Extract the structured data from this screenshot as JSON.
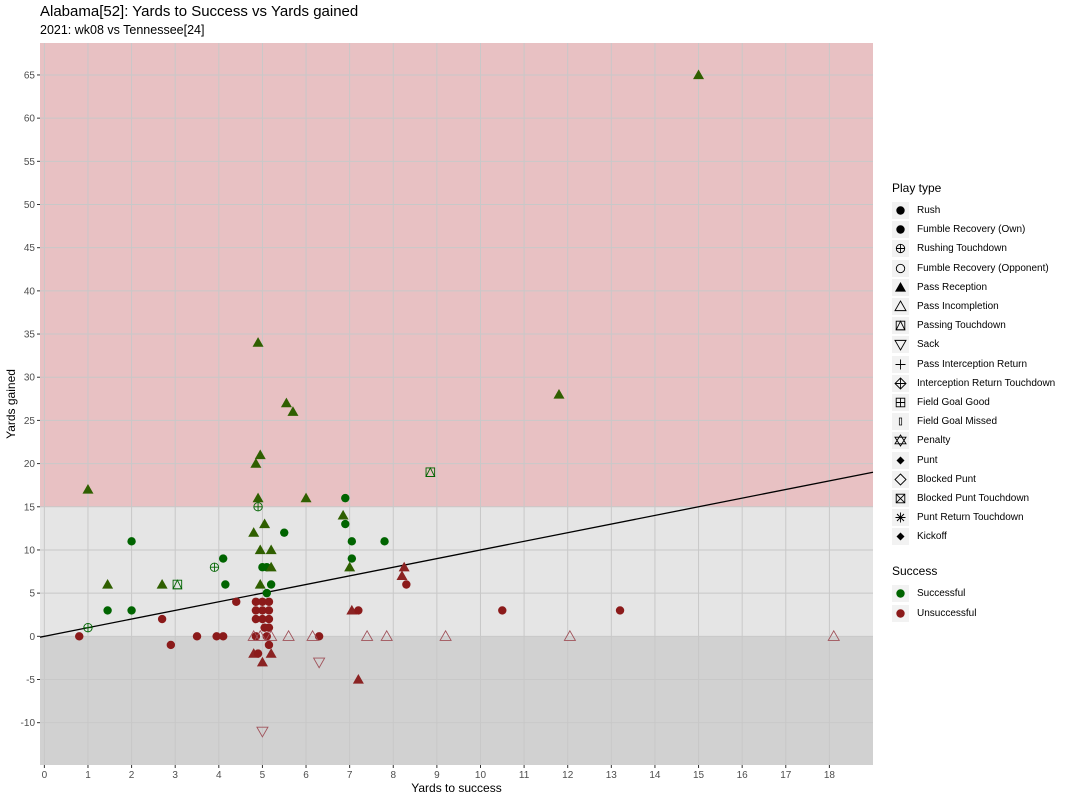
{
  "title": "Alabama[52]: Yards to Success vs Yards gained",
  "subtitle": "2021: wk08 vs Tennessee[24]",
  "colors": {
    "successful": "#006400",
    "unsuccessful": "#8b1a1a",
    "band_top": "#e8c1c3",
    "band_mid": "#e5e5e5",
    "band_low": "#d1d1d1",
    "grid": "#c8c8c8",
    "line": "#000000"
  },
  "legend": {
    "play_type_title": "Play type",
    "play_types": [
      {
        "label": "Rush",
        "icon": "filled-circle-icon"
      },
      {
        "label": "Fumble Recovery (Own)",
        "icon": "filled-circle-icon"
      },
      {
        "label": "Rushing Touchdown",
        "icon": "circle-plus-icon"
      },
      {
        "label": "Fumble Recovery (Opponent)",
        "icon": "open-circle-icon"
      },
      {
        "label": "Pass Reception",
        "icon": "filled-triangle-icon"
      },
      {
        "label": "Pass Incompletion",
        "icon": "open-triangle-icon"
      },
      {
        "label": "Passing Touchdown",
        "icon": "square-triangle-icon"
      },
      {
        "label": "Sack",
        "icon": "down-triangle-icon"
      },
      {
        "label": "Pass Interception Return",
        "icon": "plus-icon"
      },
      {
        "label": "Interception Return Touchdown",
        "icon": "diamond-plus-icon"
      },
      {
        "label": "Field Goal Good",
        "icon": "square-plus-icon"
      },
      {
        "label": "Field Goal Missed",
        "icon": "small-bar-icon"
      },
      {
        "label": "Penalty",
        "icon": "star-of-david-icon"
      },
      {
        "label": "Punt",
        "icon": "small-filled-diamond-icon"
      },
      {
        "label": "Blocked Punt",
        "icon": "open-diamond-icon"
      },
      {
        "label": "Blocked Punt Touchdown",
        "icon": "square-cross-icon"
      },
      {
        "label": "Punt Return Touchdown",
        "icon": "asterisk-icon"
      },
      {
        "label": "Kickoff",
        "icon": "small-filled-diamond-icon"
      }
    ],
    "success_title": "Success",
    "success": [
      {
        "label": "Successful",
        "color": "#006400"
      },
      {
        "label": "Unsuccessful",
        "color": "#8b1a1a"
      }
    ]
  },
  "chart_data": {
    "type": "scatter",
    "xlabel": "Yards to success",
    "ylabel": "Yards gained",
    "xlim": [
      -0.1,
      19.0
    ],
    "ylim": [
      -14.9,
      68.7
    ],
    "x_ticks": [
      0,
      1,
      2,
      3,
      4,
      5,
      6,
      7,
      8,
      9,
      10,
      11,
      12,
      13,
      14,
      15,
      16,
      17,
      18
    ],
    "y_ticks": [
      -10,
      -5,
      0,
      5,
      10,
      15,
      20,
      25,
      30,
      35,
      40,
      45,
      50,
      55,
      60,
      65
    ],
    "grid": true,
    "bands": [
      {
        "from": 15,
        "to": 68.7,
        "color": "#e8c1c3"
      },
      {
        "from": 0,
        "to": 15,
        "color": "#e5e5e5"
      },
      {
        "from": -14.9,
        "to": 0,
        "color": "#d1d1d1"
      }
    ],
    "reference_line": {
      "intercept": 0,
      "slope": 1.0
    },
    "legend_position": "right",
    "points": [
      {
        "x": 15.0,
        "y": 65,
        "shape": "Pass Reception",
        "success": "Successful"
      },
      {
        "x": 11.8,
        "y": 28,
        "shape": "Pass Reception",
        "success": "Successful"
      },
      {
        "x": 4.9,
        "y": 34,
        "shape": "Pass Reception",
        "success": "Successful"
      },
      {
        "x": 5.55,
        "y": 27,
        "shape": "Pass Reception",
        "success": "Successful"
      },
      {
        "x": 5.7,
        "y": 26,
        "shape": "Pass Reception",
        "success": "Successful"
      },
      {
        "x": 4.85,
        "y": 20,
        "shape": "Pass Reception",
        "success": "Successful"
      },
      {
        "x": 4.95,
        "y": 21,
        "shape": "Pass Reception",
        "success": "Successful"
      },
      {
        "x": 1.0,
        "y": 17,
        "shape": "Pass Reception",
        "success": "Successful"
      },
      {
        "x": 4.9,
        "y": 16,
        "shape": "Pass Reception",
        "success": "Successful"
      },
      {
        "x": 6.0,
        "y": 16,
        "shape": "Pass Reception",
        "success": "Successful"
      },
      {
        "x": 6.9,
        "y": 16,
        "shape": "Rush",
        "success": "Successful"
      },
      {
        "x": 8.85,
        "y": 19,
        "shape": "Passing Touchdown",
        "success": "Successful"
      },
      {
        "x": 4.9,
        "y": 15,
        "shape": "Rushing Touchdown",
        "success": "Successful"
      },
      {
        "x": 6.85,
        "y": 14,
        "shape": "Pass Reception",
        "success": "Successful"
      },
      {
        "x": 6.9,
        "y": 13,
        "shape": "Rush",
        "success": "Successful"
      },
      {
        "x": 5.05,
        "y": 13,
        "shape": "Pass Reception",
        "success": "Successful"
      },
      {
        "x": 4.8,
        "y": 12,
        "shape": "Pass Reception",
        "success": "Successful"
      },
      {
        "x": 5.5,
        "y": 12,
        "shape": "Rush",
        "success": "Successful"
      },
      {
        "x": 2.0,
        "y": 11,
        "shape": "Rush",
        "success": "Successful"
      },
      {
        "x": 7.05,
        "y": 11,
        "shape": "Rush",
        "success": "Successful"
      },
      {
        "x": 7.8,
        "y": 11,
        "shape": "Rush",
        "success": "Successful"
      },
      {
        "x": 4.95,
        "y": 10,
        "shape": "Pass Reception",
        "success": "Successful"
      },
      {
        "x": 5.2,
        "y": 10,
        "shape": "Pass Reception",
        "success": "Successful"
      },
      {
        "x": 4.1,
        "y": 9,
        "shape": "Rush",
        "success": "Successful"
      },
      {
        "x": 7.05,
        "y": 9,
        "shape": "Rush",
        "success": "Successful"
      },
      {
        "x": 3.9,
        "y": 8,
        "shape": "Rushing Touchdown",
        "success": "Successful"
      },
      {
        "x": 5.0,
        "y": 8,
        "shape": "Rush",
        "success": "Successful"
      },
      {
        "x": 5.1,
        "y": 8,
        "shape": "Rush",
        "success": "Successful"
      },
      {
        "x": 5.2,
        "y": 8,
        "shape": "Pass Reception",
        "success": "Successful"
      },
      {
        "x": 7.0,
        "y": 8,
        "shape": "Pass Reception",
        "success": "Successful"
      },
      {
        "x": 1.45,
        "y": 6,
        "shape": "Pass Reception",
        "success": "Successful"
      },
      {
        "x": 2.7,
        "y": 6,
        "shape": "Pass Reception",
        "success": "Successful"
      },
      {
        "x": 3.05,
        "y": 6,
        "shape": "Passing Touchdown",
        "success": "Successful"
      },
      {
        "x": 4.15,
        "y": 6,
        "shape": "Rush",
        "success": "Successful"
      },
      {
        "x": 4.95,
        "y": 6,
        "shape": "Pass Reception",
        "success": "Successful"
      },
      {
        "x": 5.2,
        "y": 6,
        "shape": "Rush",
        "success": "Successful"
      },
      {
        "x": 5.1,
        "y": 5,
        "shape": "Rush",
        "success": "Successful"
      },
      {
        "x": 1.45,
        "y": 3,
        "shape": "Rush",
        "success": "Successful"
      },
      {
        "x": 2.0,
        "y": 3,
        "shape": "Rush",
        "success": "Successful"
      },
      {
        "x": 1.0,
        "y": 1,
        "shape": "Rushing Touchdown",
        "success": "Successful"
      },
      {
        "x": 8.25,
        "y": 8,
        "shape": "Pass Reception",
        "success": "Unsuccessful"
      },
      {
        "x": 8.2,
        "y": 7,
        "shape": "Pass Reception",
        "success": "Unsuccessful"
      },
      {
        "x": 8.3,
        "y": 6,
        "shape": "Rush",
        "success": "Unsuccessful"
      },
      {
        "x": 4.4,
        "y": 4,
        "shape": "Rush",
        "success": "Unsuccessful"
      },
      {
        "x": 4.85,
        "y": 4,
        "shape": "Rush",
        "success": "Unsuccessful"
      },
      {
        "x": 5.0,
        "y": 4,
        "shape": "Rush",
        "success": "Unsuccessful"
      },
      {
        "x": 5.15,
        "y": 4,
        "shape": "Rush",
        "success": "Unsuccessful"
      },
      {
        "x": 4.85,
        "y": 3,
        "shape": "Rush",
        "success": "Unsuccessful"
      },
      {
        "x": 5.0,
        "y": 3,
        "shape": "Rush",
        "success": "Unsuccessful"
      },
      {
        "x": 5.15,
        "y": 3,
        "shape": "Rush",
        "success": "Unsuccessful"
      },
      {
        "x": 7.05,
        "y": 3,
        "shape": "Pass Reception",
        "success": "Unsuccessful"
      },
      {
        "x": 7.2,
        "y": 3,
        "shape": "Rush",
        "success": "Unsuccessful"
      },
      {
        "x": 10.5,
        "y": 3,
        "shape": "Rush",
        "success": "Unsuccessful"
      },
      {
        "x": 13.2,
        "y": 3,
        "shape": "Rush",
        "success": "Unsuccessful"
      },
      {
        "x": 2.7,
        "y": 2,
        "shape": "Rush",
        "success": "Unsuccessful"
      },
      {
        "x": 4.85,
        "y": 2,
        "shape": "Rush",
        "success": "Unsuccessful"
      },
      {
        "x": 5.0,
        "y": 2,
        "shape": "Rush",
        "success": "Unsuccessful"
      },
      {
        "x": 5.15,
        "y": 2,
        "shape": "Rush",
        "success": "Unsuccessful"
      },
      {
        "x": 5.05,
        "y": 1,
        "shape": "Rush",
        "success": "Unsuccessful"
      },
      {
        "x": 5.15,
        "y": 1,
        "shape": "Rush",
        "success": "Unsuccessful"
      },
      {
        "x": 0.8,
        "y": 0,
        "shape": "Rush",
        "success": "Unsuccessful"
      },
      {
        "x": 3.5,
        "y": 0,
        "shape": "Rush",
        "success": "Unsuccessful"
      },
      {
        "x": 3.95,
        "y": 0,
        "shape": "Rush",
        "success": "Unsuccessful"
      },
      {
        "x": 4.1,
        "y": 0,
        "shape": "Rush",
        "success": "Unsuccessful"
      },
      {
        "x": 4.85,
        "y": 0,
        "shape": "Rush",
        "success": "Unsuccessful"
      },
      {
        "x": 5.1,
        "y": 0,
        "shape": "Rush",
        "success": "Unsuccessful"
      },
      {
        "x": 6.3,
        "y": 0,
        "shape": "Rush",
        "success": "Unsuccessful"
      },
      {
        "x": 4.8,
        "y": 0,
        "shape": "Pass Incompletion",
        "success": "Unsuccessful"
      },
      {
        "x": 4.95,
        "y": 0,
        "shape": "Pass Incompletion",
        "success": "Unsuccessful"
      },
      {
        "x": 5.2,
        "y": 0,
        "shape": "Pass Incompletion",
        "success": "Unsuccessful"
      },
      {
        "x": 5.6,
        "y": 0,
        "shape": "Pass Incompletion",
        "success": "Unsuccessful"
      },
      {
        "x": 6.15,
        "y": 0,
        "shape": "Pass Incompletion",
        "success": "Unsuccessful"
      },
      {
        "x": 7.4,
        "y": 0,
        "shape": "Pass Incompletion",
        "success": "Unsuccessful"
      },
      {
        "x": 7.85,
        "y": 0,
        "shape": "Pass Incompletion",
        "success": "Unsuccessful"
      },
      {
        "x": 9.2,
        "y": 0,
        "shape": "Pass Incompletion",
        "success": "Unsuccessful"
      },
      {
        "x": 12.05,
        "y": 0,
        "shape": "Pass Incompletion",
        "success": "Unsuccessful"
      },
      {
        "x": 18.1,
        "y": 0,
        "shape": "Pass Incompletion",
        "success": "Unsuccessful"
      },
      {
        "x": 2.9,
        "y": -1,
        "shape": "Rush",
        "success": "Unsuccessful"
      },
      {
        "x": 5.15,
        "y": -1,
        "shape": "Rush",
        "success": "Unsuccessful"
      },
      {
        "x": 4.8,
        "y": -2,
        "shape": "Pass Reception",
        "success": "Unsuccessful"
      },
      {
        "x": 4.9,
        "y": -2,
        "shape": "Rush",
        "success": "Unsuccessful"
      },
      {
        "x": 5.2,
        "y": -2,
        "shape": "Pass Reception",
        "success": "Unsuccessful"
      },
      {
        "x": 5.0,
        "y": -3,
        "shape": "Pass Reception",
        "success": "Unsuccessful"
      },
      {
        "x": 6.3,
        "y": -3,
        "shape": "Sack",
        "success": "Unsuccessful"
      },
      {
        "x": 7.2,
        "y": -5,
        "shape": "Pass Reception",
        "success": "Unsuccessful"
      },
      {
        "x": 5.0,
        "y": -11,
        "shape": "Sack",
        "success": "Unsuccessful"
      }
    ]
  }
}
